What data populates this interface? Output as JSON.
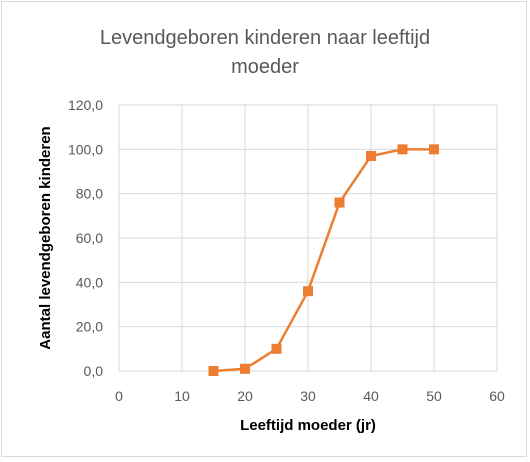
{
  "chart_data": {
    "type": "line",
    "title_lines": [
      "Levendgeboren kinderen naar leeftijd",
      "moeder"
    ],
    "xlabel": "Leeftijd moeder (jr)",
    "ylabel": "Aantal levendgeboren kinderen",
    "xlim": [
      0,
      60
    ],
    "ylim": [
      0,
      120
    ],
    "xticks": [
      "0",
      "10",
      "20",
      "30",
      "40",
      "50",
      "60"
    ],
    "yticks": [
      "0,0",
      "20,0",
      "40,0",
      "60,0",
      "80,0",
      "100,0",
      "120,0"
    ],
    "grid": true,
    "legend": "none",
    "series": [
      {
        "color": "#ed7d31",
        "marker": "square",
        "x": [
          15,
          20,
          25,
          30,
          35,
          40,
          45,
          50
        ],
        "y": [
          0,
          1,
          10,
          36,
          76,
          97,
          100,
          100
        ]
      }
    ]
  },
  "colors": {
    "grid": "#d9d9d9",
    "series": "#ed7d31"
  }
}
